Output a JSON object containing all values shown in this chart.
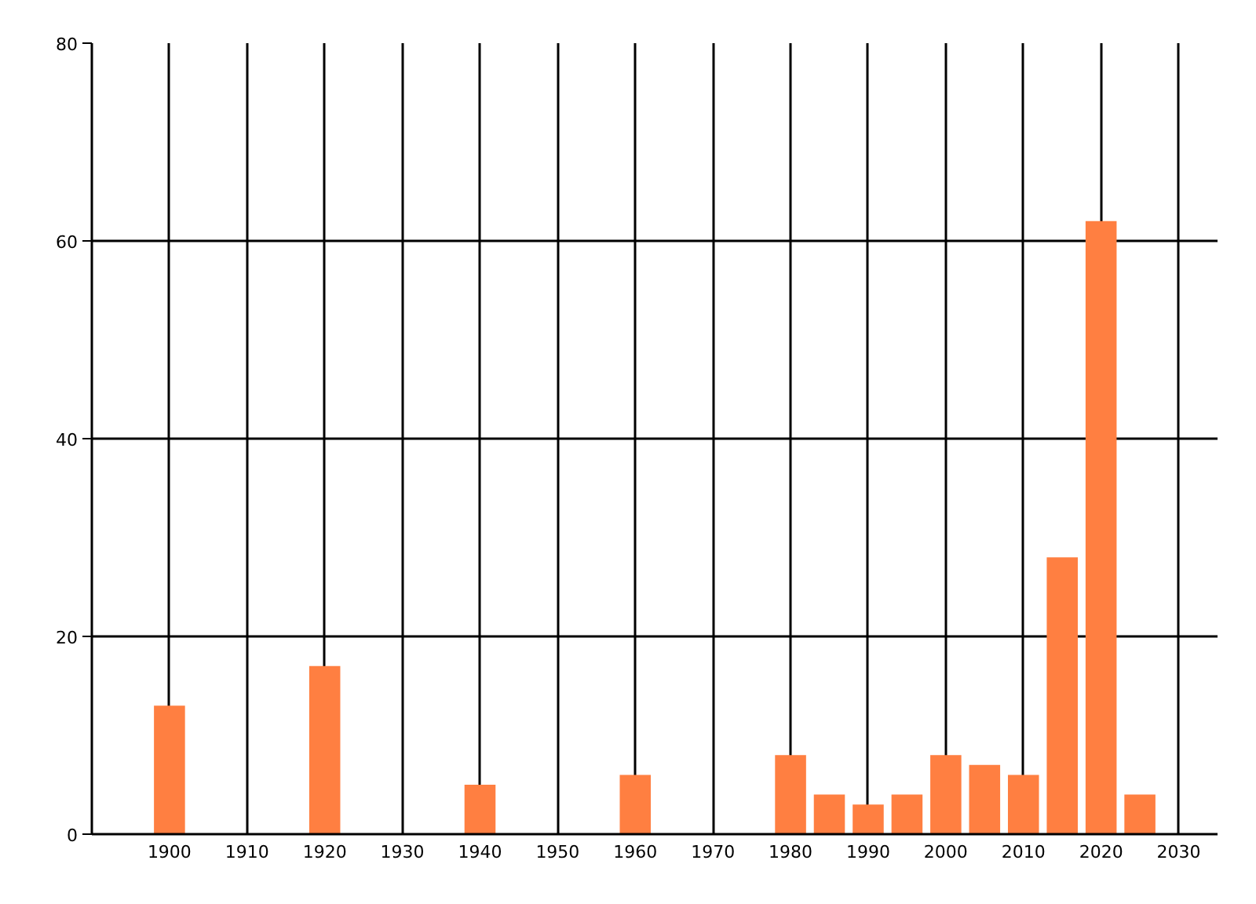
{
  "chart_data": {
    "type": "bar",
    "x": [
      1900,
      1920,
      1940,
      1960,
      1980,
      1985,
      1990,
      1995,
      2000,
      2005,
      2010,
      2015,
      2020,
      2025
    ],
    "values": [
      13,
      17,
      5,
      6,
      8,
      4,
      3,
      4,
      8,
      7,
      6,
      28,
      62,
      4
    ],
    "color": "#ff7f41",
    "xlim": [
      1890,
      2035
    ],
    "xticks": [
      1900,
      1910,
      1920,
      1930,
      1940,
      1950,
      1960,
      1970,
      1980,
      1990,
      2000,
      2010,
      2020,
      2030
    ],
    "ylim": [
      0,
      80
    ],
    "yticks": [
      0,
      20,
      40,
      60,
      80
    ],
    "grid": true
  }
}
